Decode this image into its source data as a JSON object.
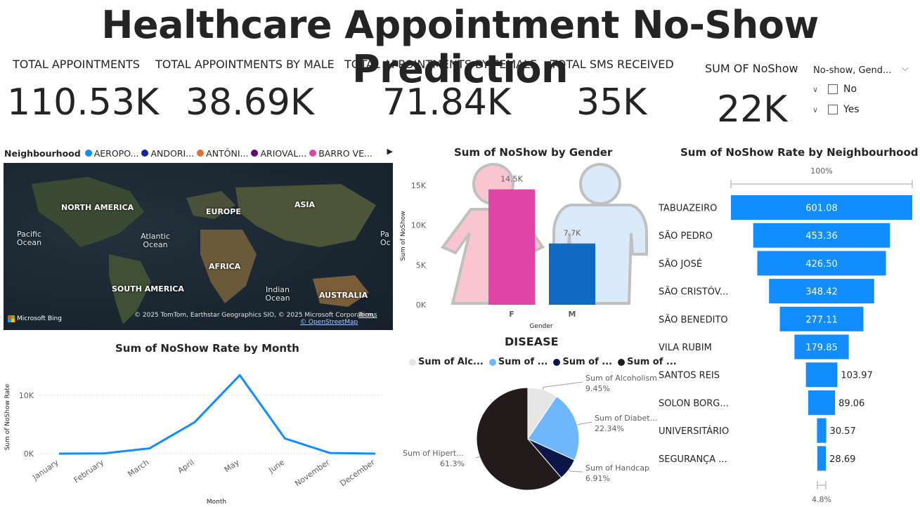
{
  "title": "Healthcare Appointment No-Show Prediction",
  "kpis": [
    {
      "label": "TOTAL APPOINTMENTS",
      "value": "110.53K"
    },
    {
      "label": "TOTAL APPOINTMENTS BY MALE",
      "value": "38.69K"
    },
    {
      "label": "TOTAL APPOINTMENTS BY FEMALE",
      "value": "71.84K"
    },
    {
      "label": "TOTAL SMS RECEIVED",
      "value": "35K"
    },
    {
      "label": "SUM OF NoShow",
      "value": "22K"
    }
  ],
  "slicer": {
    "header": "No-show, Gend...",
    "items": [
      {
        "label": "No",
        "checked": false
      },
      {
        "label": "Yes",
        "checked": false
      }
    ]
  },
  "map": {
    "legend_title": "Neighbourhood",
    "legend_items": [
      {
        "label": "AEROPO...",
        "color": "#118dff"
      },
      {
        "label": "ANDORI...",
        "color": "#12239e"
      },
      {
        "label": "ANTÔNI...",
        "color": "#e66c37"
      },
      {
        "label": "ARIOVAL...",
        "color": "#6b007b"
      },
      {
        "label": "BARRO VE...",
        "color": "#e044a7"
      }
    ],
    "continents": [
      "NORTH AMERICA",
      "EUROPE",
      "ASIA",
      "AFRICA",
      "SOUTH AMERICA",
      "AUSTRALIA"
    ],
    "oceans": [
      "Pacific Ocean",
      "Atlantic Ocean",
      "Indian Ocean",
      "Pa Oc"
    ],
    "attribution": "© 2025 TomTom, Earthstar Geographics SIO, © 2025 Microsoft Corporation,",
    "attribution_link": "© OpenStreetMap",
    "terms": "Terms",
    "bing": "Microsoft Bing"
  },
  "gender_chart": {
    "title": "Sum of NoShow by Gender",
    "chart_data": {
      "type": "bar",
      "title": "Sum of NoShow by Gender",
      "xlabel": "Gender",
      "ylabel": "Sum of NoShow",
      "categories": [
        "F",
        "M"
      ],
      "values": [
        14500,
        7700
      ],
      "data_labels": [
        "14.5K",
        "7.7K"
      ],
      "colors": [
        "#e044a7",
        "#0f6ac1"
      ],
      "yticks": [
        "0K",
        "5K",
        "10K",
        "15K"
      ],
      "ylim": [
        0,
        15000
      ]
    }
  },
  "neighbourhood_chart": {
    "title": "Sum of NoShow Rate by Neighbourhood",
    "top_label": "100%",
    "bottom_label": "4.8%",
    "chart_data": {
      "type": "bar",
      "title": "Sum of NoShow Rate by Neighbourhood",
      "categories": [
        "TABUAZEIRO",
        "SÃO PEDRO",
        "SÃO JOSÉ",
        "SÃO CRISTÓV...",
        "SÃO BENEDITO",
        "VILA RUBIM",
        "SANTOS REIS",
        "SOLON BORG...",
        "UNIVERSITÁRIO",
        "SEGURANÇA ..."
      ],
      "values": [
        601.08,
        453.36,
        426.5,
        348.42,
        277.11,
        179.85,
        103.97,
        89.06,
        30.57,
        28.69
      ],
      "data_labels": [
        "601.08",
        "453.36",
        "426.50",
        "348.42",
        "277.11",
        "179.85",
        "103.97",
        "89.06",
        "30.57",
        "28.69"
      ],
      "color": "#118dff"
    }
  },
  "month_chart": {
    "title": "Sum of NoShow Rate by Month",
    "chart_data": {
      "type": "line",
      "title": "Sum of NoShow Rate by Month",
      "xlabel": "Month",
      "ylabel": "Sum of NoShow Rate",
      "categories": [
        "January",
        "February",
        "March",
        "April",
        "May",
        "June",
        "November",
        "December"
      ],
      "values": [
        0,
        50,
        900,
        5400,
        13500,
        2600,
        100,
        0
      ],
      "yticks": [
        "0K",
        "10K"
      ],
      "ylim": [
        0,
        14500
      ],
      "color": "#118dff"
    }
  },
  "disease_chart": {
    "title": "DISEASE",
    "legend": [
      {
        "label": "Sum of Alc...",
        "color": "#e6e6e6"
      },
      {
        "label": "Sum of ...",
        "color": "#6eb7ff"
      },
      {
        "label": "Sum of ...",
        "color": "#0b1547"
      },
      {
        "label": "Sum of ...",
        "color": "#231b1b"
      }
    ],
    "chart_data": {
      "type": "pie",
      "title": "DISEASE",
      "slices": [
        {
          "label": "Sum of Alcoholism",
          "pct": "9.45%",
          "value": 9.45,
          "color": "#e6e6e6"
        },
        {
          "label": "Sum of Diabet...",
          "pct": "22.34%",
          "value": 22.34,
          "color": "#6eb7ff"
        },
        {
          "label": "Sum of Handcap",
          "pct": "6.91%",
          "value": 6.91,
          "color": "#0b1547"
        },
        {
          "label": "Sum of Hipert...",
          "pct": "61.3%",
          "value": 61.3,
          "color": "#231b1b"
        }
      ]
    }
  }
}
